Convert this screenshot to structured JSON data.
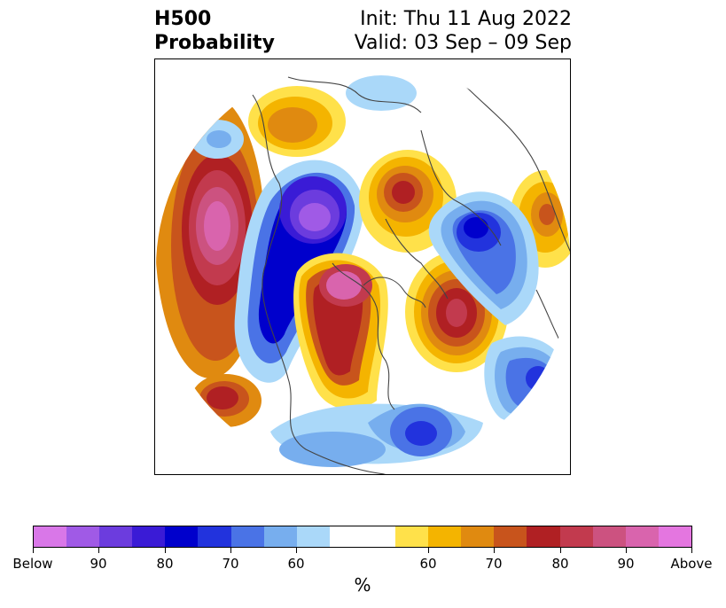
{
  "title": {
    "left_line1": "H500",
    "left_line2": "Probability",
    "init": "Init: Thu 11 Aug 2022",
    "valid": "Valid: 03 Sep – 09 Sep"
  },
  "map": {
    "projection": "north-polar stereographic",
    "variable": "500 hPa height anomaly probability"
  },
  "colorbar": {
    "colors": [
      "#d977e8",
      "#a05ae6",
      "#6c3cde",
      "#3a1bd6",
      "#0000cc",
      "#2233dd",
      "#4a73e6",
      "#77aeee",
      "#aad8f9",
      "#ffffff",
      "#ffe14a",
      "#f4b400",
      "#e08a10",
      "#c8541c",
      "#b02023",
      "#c23a4e",
      "#cc5280",
      "#d964ad",
      "#e476e0"
    ],
    "tick_labels": [
      "Below",
      "90",
      "80",
      "70",
      "60",
      "60",
      "70",
      "80",
      "90",
      "Above"
    ],
    "unit": "%"
  }
}
